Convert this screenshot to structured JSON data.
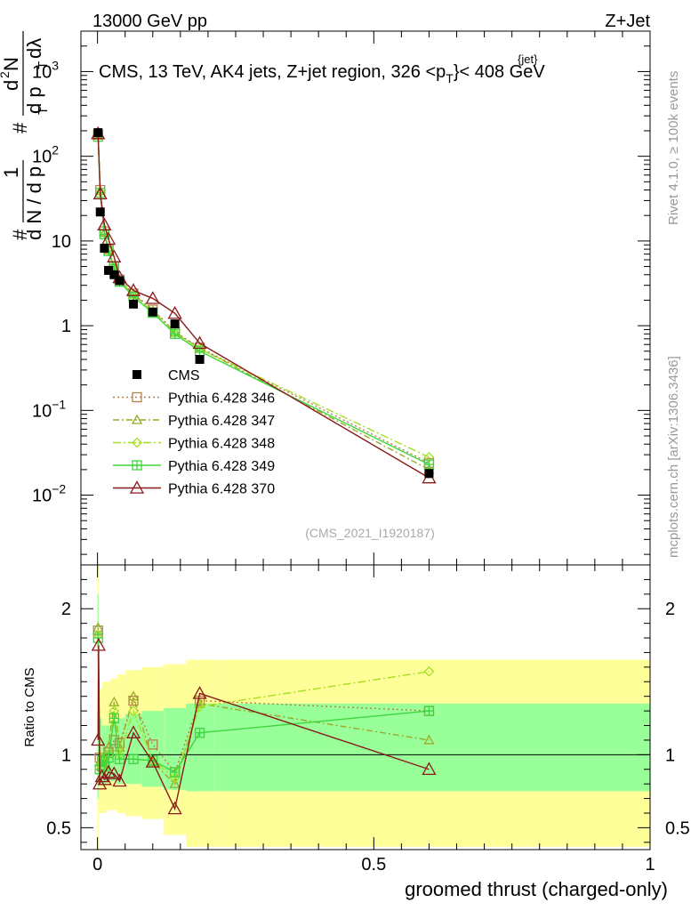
{
  "header": {
    "left": "13000 GeV pp",
    "right": "Z+Jet",
    "side_top": "Rivet 4.1.0, ≥ 100k events",
    "side_bottom": "mcplots.cern.ch [arXiv:1306.3436]"
  },
  "chart_data": [
    {
      "type": "line",
      "panel": "main",
      "title": "CMS, 13 TeV, AK4 jets, Z+jet region, 326 <p",
      "title_sup": "{jet}",
      "title_sub": "T",
      "title_tail": "}< 408 GeV",
      "yscale": "log",
      "ylim": [
        0.0015,
        3000
      ],
      "xlim": [
        -0.03,
        1.0
      ],
      "ylabel_parts": [
        "#",
        "1",
        "d N / d p",
        "T",
        "#",
        "d",
        "2",
        "N",
        "d p",
        "T",
        "dλ"
      ],
      "y_ticks": [
        {
          "value": 1000,
          "base": "10",
          "exp": "3"
        },
        {
          "value": 100,
          "base": "10",
          "exp": "2"
        },
        {
          "value": 10,
          "base": "10",
          "exp": ""
        },
        {
          "value": 1,
          "base": "1",
          "exp": ""
        },
        {
          "value": 0.1,
          "base": "10",
          "exp": "−1"
        },
        {
          "value": 0.01,
          "base": "10",
          "exp": "−2"
        }
      ],
      "watermark": "(CMS_2021_I1920187)",
      "legend_position": "center-left",
      "data": {
        "name": "CMS",
        "color": "#000000",
        "x": [
          0.001,
          0.005,
          0.0125,
          0.02,
          0.03,
          0.04,
          0.065,
          0.1,
          0.14,
          0.185,
          0.6
        ],
        "y": [
          190,
          22,
          8.2,
          4.5,
          4.0,
          3.4,
          1.8,
          1.45,
          1.05,
          0.4,
          0.018
        ]
      },
      "series": [
        {
          "name": "Pythia 6.428 346",
          "color": "#b5804a",
          "marker": "square",
          "dash": "2,3",
          "x": [
            0.001,
            0.005,
            0.0125,
            0.02,
            0.03,
            0.04,
            0.065,
            0.1,
            0.14,
            0.185,
            0.6
          ],
          "y": [
            180,
            40,
            13,
            8,
            5,
            3.5,
            2.4,
            1.55,
            0.85,
            0.55,
            0.024
          ]
        },
        {
          "name": "Pythia 6.428 347",
          "color": "#9aaa2a",
          "marker": "triangle",
          "dash": "7,3,2,3",
          "x": [
            0.001,
            0.005,
            0.0125,
            0.02,
            0.03,
            0.04,
            0.065,
            0.1,
            0.14,
            0.185,
            0.6
          ],
          "y": [
            182,
            39,
            12.5,
            8,
            4.8,
            3.4,
            2.35,
            1.5,
            0.84,
            0.54,
            0.02
          ]
        },
        {
          "name": "Pythia 6.428 348",
          "color": "#a3e020",
          "marker": "diamond",
          "dash": "9,3,2,3",
          "x": [
            0.001,
            0.005,
            0.0125,
            0.02,
            0.03,
            0.04,
            0.065,
            0.1,
            0.14,
            0.185,
            0.6
          ],
          "y": [
            175,
            38,
            12.8,
            7.8,
            4.9,
            3.45,
            2.3,
            1.48,
            0.82,
            0.53,
            0.028
          ]
        },
        {
          "name": "Pythia 6.428 349",
          "color": "#3ed63e",
          "marker": "plus",
          "dash": "",
          "x": [
            0.001,
            0.005,
            0.0125,
            0.02,
            0.03,
            0.04,
            0.065,
            0.1,
            0.14,
            0.185,
            0.6
          ],
          "y": [
            170,
            37,
            12,
            7.6,
            4.7,
            3.3,
            2.2,
            1.42,
            0.8,
            0.5,
            0.023
          ]
        },
        {
          "name": "Pythia 6.428 370",
          "color": "#8b1a1a",
          "marker": "triangle-open",
          "dash": "",
          "x": [
            0.001,
            0.005,
            0.0125,
            0.02,
            0.03,
            0.04,
            0.065,
            0.1,
            0.14,
            0.185,
            0.6
          ],
          "y": [
            185,
            36,
            15.5,
            10.5,
            6.5,
            3.7,
            2.6,
            2.1,
            1.4,
            0.62,
            0.016
          ]
        }
      ]
    },
    {
      "type": "line",
      "panel": "ratio",
      "ylabel": "Ratio to CMS",
      "xlabel": "groomed thrust (charged-only)",
      "xlim": [
        -0.03,
        1.0
      ],
      "ylim": [
        0.35,
        2.3
      ],
      "reference_line": 1.0,
      "x_ticks": [
        {
          "value": 0,
          "label": "0"
        },
        {
          "value": 0.5,
          "label": "0.5"
        },
        {
          "value": 1,
          "label": "1"
        }
      ],
      "y_ticks": [
        {
          "value": 2,
          "label": "2"
        },
        {
          "value": 1,
          "label": "1"
        },
        {
          "value": 0.5,
          "label": "0.5"
        }
      ],
      "band_edges": [
        0,
        0.002,
        0.008,
        0.016,
        0.024,
        0.036,
        0.05,
        0.08,
        0.12,
        0.16,
        0.21,
        1.0
      ],
      "band_green": [
        [
          0.7,
          2.1
        ],
        [
          0.8,
          1.25
        ],
        [
          0.8,
          1.2
        ],
        [
          0.82,
          1.2
        ],
        [
          0.82,
          1.22
        ],
        [
          0.8,
          1.25
        ],
        [
          0.8,
          1.28
        ],
        [
          0.78,
          1.3
        ],
        [
          0.76,
          1.32
        ],
        [
          0.75,
          1.35
        ],
        [
          0.75,
          1.35
        ]
      ],
      "band_yellow": [
        [
          0.35,
          2.3
        ],
        [
          0.6,
          1.45
        ],
        [
          0.6,
          1.5
        ],
        [
          0.62,
          1.5
        ],
        [
          0.62,
          1.52
        ],
        [
          0.6,
          1.55
        ],
        [
          0.58,
          1.58
        ],
        [
          0.56,
          1.6
        ],
        [
          0.45,
          1.62
        ],
        [
          0.37,
          1.65
        ],
        [
          0.37,
          1.65
        ]
      ],
      "series": [
        {
          "name": "Pythia 6.428 346",
          "color": "#b5804a",
          "marker": "square",
          "dash": "2,3",
          "x": [
            0.001,
            0.004,
            0.008,
            0.013,
            0.02,
            0.03,
            0.04,
            0.065,
            0.1,
            0.14,
            0.185,
            0.6
          ],
          "y": [
            1.85,
            0.98,
            0.92,
            0.92,
            1.02,
            1.1,
            1.08,
            1.37,
            1.07,
            0.88,
            1.37,
            1.3
          ]
        },
        {
          "name": "Pythia 6.428 347",
          "color": "#9aaa2a",
          "marker": "triangle",
          "dash": "7,3,2,3",
          "x": [
            0.001,
            0.004,
            0.008,
            0.013,
            0.02,
            0.03,
            0.04,
            0.065,
            0.1,
            0.14,
            0.185,
            0.6
          ],
          "y": [
            1.87,
            0.95,
            0.97,
            0.95,
            1.05,
            1.36,
            1.05,
            1.4,
            0.95,
            0.8,
            1.35,
            1.1
          ]
        },
        {
          "name": "Pythia 6.428 348",
          "color": "#a3e020",
          "marker": "diamond",
          "dash": "9,3,2,3",
          "x": [
            0.001,
            0.004,
            0.008,
            0.013,
            0.02,
            0.03,
            0.04,
            0.065,
            0.1,
            0.14,
            0.185,
            0.6
          ],
          "y": [
            1.82,
            0.93,
            0.98,
            0.94,
            1.0,
            1.3,
            1.0,
            1.3,
            0.96,
            0.84,
            1.33,
            1.57
          ]
        },
        {
          "name": "Pythia 6.428 349",
          "color": "#3ed63e",
          "marker": "plus",
          "dash": "",
          "x": [
            0.001,
            0.004,
            0.008,
            0.013,
            0.02,
            0.03,
            0.04,
            0.065,
            0.1,
            0.14,
            0.185,
            0.6
          ],
          "y": [
            1.8,
            0.9,
            0.96,
            0.92,
            0.98,
            1.25,
            0.97,
            0.97,
            0.96,
            0.88,
            1.15,
            1.3
          ]
        },
        {
          "name": "Pythia 6.428 370",
          "color": "#8b1a1a",
          "marker": "triangle-open",
          "dash": "",
          "x": [
            0.001,
            0.002,
            0.004,
            0.008,
            0.013,
            0.02,
            0.03,
            0.04,
            0.065,
            0.1,
            0.14,
            0.185,
            0.6
          ],
          "y": [
            1.1,
            1.75,
            0.8,
            0.85,
            0.83,
            0.88,
            0.87,
            0.82,
            1.15,
            0.95,
            0.63,
            1.42,
            0.9
          ]
        }
      ]
    }
  ]
}
